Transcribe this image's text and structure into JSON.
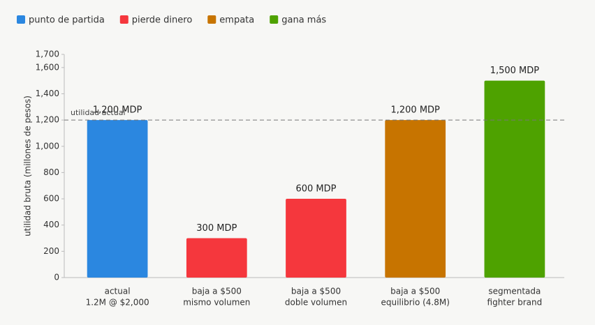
{
  "chart_data": {
    "type": "bar",
    "legend": [
      {
        "name": "punto de partida",
        "color": "#2b87e0"
      },
      {
        "name": "pierde dinero",
        "color": "#f5373d"
      },
      {
        "name": "empata",
        "color": "#c77400"
      },
      {
        "name": "gana más",
        "color": "#4ea200"
      }
    ],
    "ylabel": "utilidad bruta (millones de pesos)",
    "categories": [
      [
        "actual",
        "1.2M @ $2,000"
      ],
      [
        "baja a $500",
        "mismo volumen"
      ],
      [
        "baja a $500",
        "doble volumen"
      ],
      [
        "baja a $500",
        "equilibrio (4.8M)"
      ],
      [
        "segmentada",
        "fighter brand"
      ]
    ],
    "values": [
      1200,
      300,
      600,
      1200,
      1500
    ],
    "value_labels": [
      "1,200 MDP",
      "300 MDP",
      "600 MDP",
      "1,200 MDP",
      "1,500 MDP"
    ],
    "colors": [
      "#2b87e0",
      "#f5373d",
      "#f5373d",
      "#c77400",
      "#4ea200"
    ],
    "ylim": [
      0,
      1700
    ],
    "yticks": [
      0,
      200,
      400,
      600,
      800,
      {
        "value": 1000,
        "label": "1,000"
      },
      {
        "value": 1200,
        "label": "1,200"
      },
      {
        "value": 1400,
        "label": "1,400"
      },
      {
        "value": 1600,
        "label": "1,600"
      },
      {
        "value": 1700,
        "label": "1,700"
      }
    ],
    "reference": {
      "value": 1200,
      "label": "utilidad actual"
    },
    "grid": false
  }
}
